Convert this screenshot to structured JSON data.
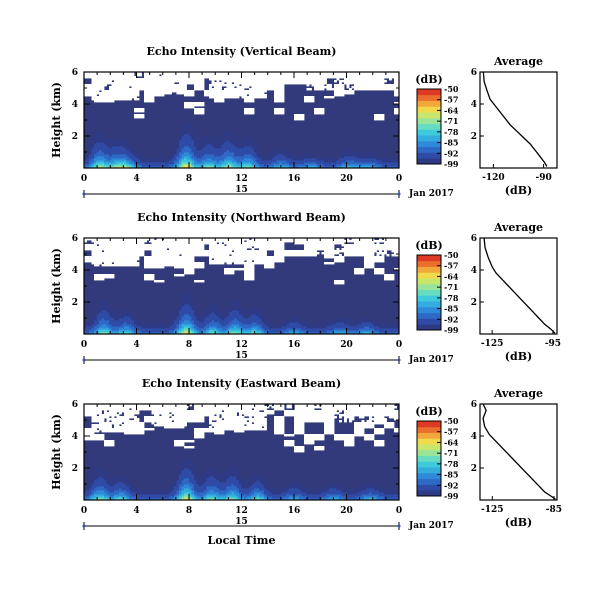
{
  "chart_data": [
    {
      "type": "heatmap",
      "title": "Echo Intensity (Vertical Beam)",
      "ylabel": "Height (km)",
      "xlabel": "",
      "x_ticks": [
        "0",
        "4",
        "8",
        "12",
        "16",
        "20",
        "0"
      ],
      "y_ticks": [
        "2",
        "4",
        "6"
      ],
      "date_label": "15",
      "month_label": "Jan 2017",
      "colorbar": {
        "unit": "(dB)",
        "ticks": [
          "-50",
          "-57",
          "-64",
          "-71",
          "-78",
          "-85",
          "-92",
          "-99"
        ],
        "range": [
          -99,
          -50
        ]
      },
      "hours": [
        0,
        24
      ],
      "ylim": [
        0,
        6
      ],
      "pulses": [
        {
          "t": 1.2,
          "h": 2.6,
          "a": 0.7
        },
        {
          "t": 2.5,
          "h": 2.2,
          "a": 0.55
        },
        {
          "t": 3.3,
          "h": 1.8,
          "a": 0.5
        },
        {
          "t": 7.8,
          "h": 3.0,
          "a": 0.9
        },
        {
          "t": 9.5,
          "h": 2.5,
          "a": 0.6
        },
        {
          "t": 11.0,
          "h": 2.8,
          "a": 0.65
        },
        {
          "t": 12.5,
          "h": 2.4,
          "a": 0.6
        },
        {
          "t": 15.0,
          "h": 1.8,
          "a": 0.35
        },
        {
          "t": 17.3,
          "h": 1.2,
          "a": 0.3
        },
        {
          "t": 20.2,
          "h": 1.6,
          "a": 0.35
        },
        {
          "t": 21.7,
          "h": 1.3,
          "a": 0.3
        }
      ]
    },
    {
      "type": "line",
      "title": "Average",
      "xlabel": "(dB)",
      "ylabel": "",
      "x_ticks": [
        "-120",
        "-90"
      ],
      "y_ticks": [
        "2",
        "4",
        "6"
      ],
      "xlim": [
        -128,
        -82
      ],
      "ylim": [
        0,
        6
      ],
      "x": [
        -126,
        -125.5,
        -124,
        -122,
        -119,
        -116,
        -113,
        -110,
        -106,
        -102,
        -98,
        -95,
        -92,
        -89.5,
        -88
      ],
      "y": [
        6.0,
        5.4,
        4.9,
        4.3,
        3.9,
        3.5,
        3.1,
        2.7,
        2.3,
        1.9,
        1.5,
        1.1,
        0.7,
        0.35,
        0.1
      ]
    },
    {
      "type": "heatmap",
      "title": "Echo Intensity (Northward Beam)",
      "ylabel": "Height (km)",
      "xlabel": "",
      "x_ticks": [
        "0",
        "4",
        "8",
        "12",
        "16",
        "20",
        "0"
      ],
      "y_ticks": [
        "2",
        "4",
        "6"
      ],
      "date_label": "15",
      "month_label": "Jan 2017",
      "colorbar": {
        "unit": "(dB)",
        "ticks": [
          "-50",
          "-57",
          "-64",
          "-71",
          "-78",
          "-85",
          "-92",
          "-99"
        ],
        "range": [
          -99,
          -50
        ]
      },
      "hours": [
        0,
        24
      ],
      "ylim": [
        0,
        6
      ],
      "pulses": [
        {
          "t": 1.5,
          "h": 2.6,
          "a": 0.6
        },
        {
          "t": 3.2,
          "h": 2.0,
          "a": 0.5
        },
        {
          "t": 7.8,
          "h": 2.8,
          "a": 0.85
        },
        {
          "t": 9.8,
          "h": 2.4,
          "a": 0.55
        },
        {
          "t": 11.5,
          "h": 2.6,
          "a": 0.6
        },
        {
          "t": 13.0,
          "h": 2.2,
          "a": 0.5
        },
        {
          "t": 16.0,
          "h": 1.6,
          "a": 0.3
        },
        {
          "t": 19.5,
          "h": 1.5,
          "a": 0.3
        },
        {
          "t": 21.5,
          "h": 1.4,
          "a": 0.35
        }
      ]
    },
    {
      "type": "line",
      "title": "Average",
      "xlabel": "(dB)",
      "ylabel": "",
      "x_ticks": [
        "-125",
        "-95"
      ],
      "y_ticks": [
        "2",
        "4",
        "6"
      ],
      "xlim": [
        -131,
        -93
      ],
      "ylim": [
        0,
        6
      ],
      "x": [
        -129,
        -128.5,
        -127,
        -125,
        -123,
        -120,
        -117,
        -114,
        -111,
        -108,
        -105,
        -102,
        -99,
        -96,
        -94
      ],
      "y": [
        6.0,
        5.4,
        4.8,
        4.2,
        3.8,
        3.4,
        3.0,
        2.6,
        2.2,
        1.8,
        1.4,
        1.0,
        0.6,
        0.3,
        0.05
      ]
    },
    {
      "type": "heatmap",
      "title": "Echo Intensity (Eastward Beam)",
      "ylabel": "Height (km)",
      "xlabel": "Local Time",
      "x_ticks": [
        "0",
        "4",
        "8",
        "12",
        "16",
        "20",
        "0"
      ],
      "y_ticks": [
        "2",
        "4",
        "6"
      ],
      "date_label": "15",
      "month_label": "Jan 2017",
      "colorbar": {
        "unit": "(dB)",
        "ticks": [
          "-50",
          "-57",
          "-64",
          "-71",
          "-78",
          "-85",
          "-92",
          "-99"
        ],
        "range": [
          -99,
          -50
        ]
      },
      "hours": [
        0,
        24
      ],
      "ylim": [
        0,
        6
      ],
      "pulses": [
        {
          "t": 1.2,
          "h": 2.5,
          "a": 0.6
        },
        {
          "t": 2.8,
          "h": 2.0,
          "a": 0.5
        },
        {
          "t": 7.8,
          "h": 2.9,
          "a": 0.85
        },
        {
          "t": 9.7,
          "h": 2.5,
          "a": 0.6
        },
        {
          "t": 11.3,
          "h": 2.6,
          "a": 0.6
        },
        {
          "t": 13.2,
          "h": 2.2,
          "a": 0.5
        },
        {
          "t": 16.0,
          "h": 1.6,
          "a": 0.3
        },
        {
          "t": 19.0,
          "h": 1.5,
          "a": 0.3
        },
        {
          "t": 21.8,
          "h": 1.4,
          "a": 0.35
        }
      ]
    },
    {
      "type": "line",
      "title": "Average",
      "xlabel": "(dB)",
      "ylabel": "",
      "x_ticks": [
        "-125",
        "-85"
      ],
      "y_ticks": [
        "2",
        "4",
        "6"
      ],
      "xlim": [
        -133,
        -83
      ],
      "ylim": [
        0,
        6
      ],
      "x": [
        -131,
        -129,
        -131,
        -130,
        -127,
        -123,
        -119,
        -115,
        -111,
        -107,
        -103,
        -99,
        -95,
        -91,
        -87,
        -84
      ],
      "y": [
        6.0,
        5.6,
        5.1,
        4.6,
        4.1,
        3.7,
        3.3,
        2.9,
        2.5,
        2.1,
        1.7,
        1.3,
        0.9,
        0.5,
        0.25,
        0.05
      ]
    }
  ]
}
